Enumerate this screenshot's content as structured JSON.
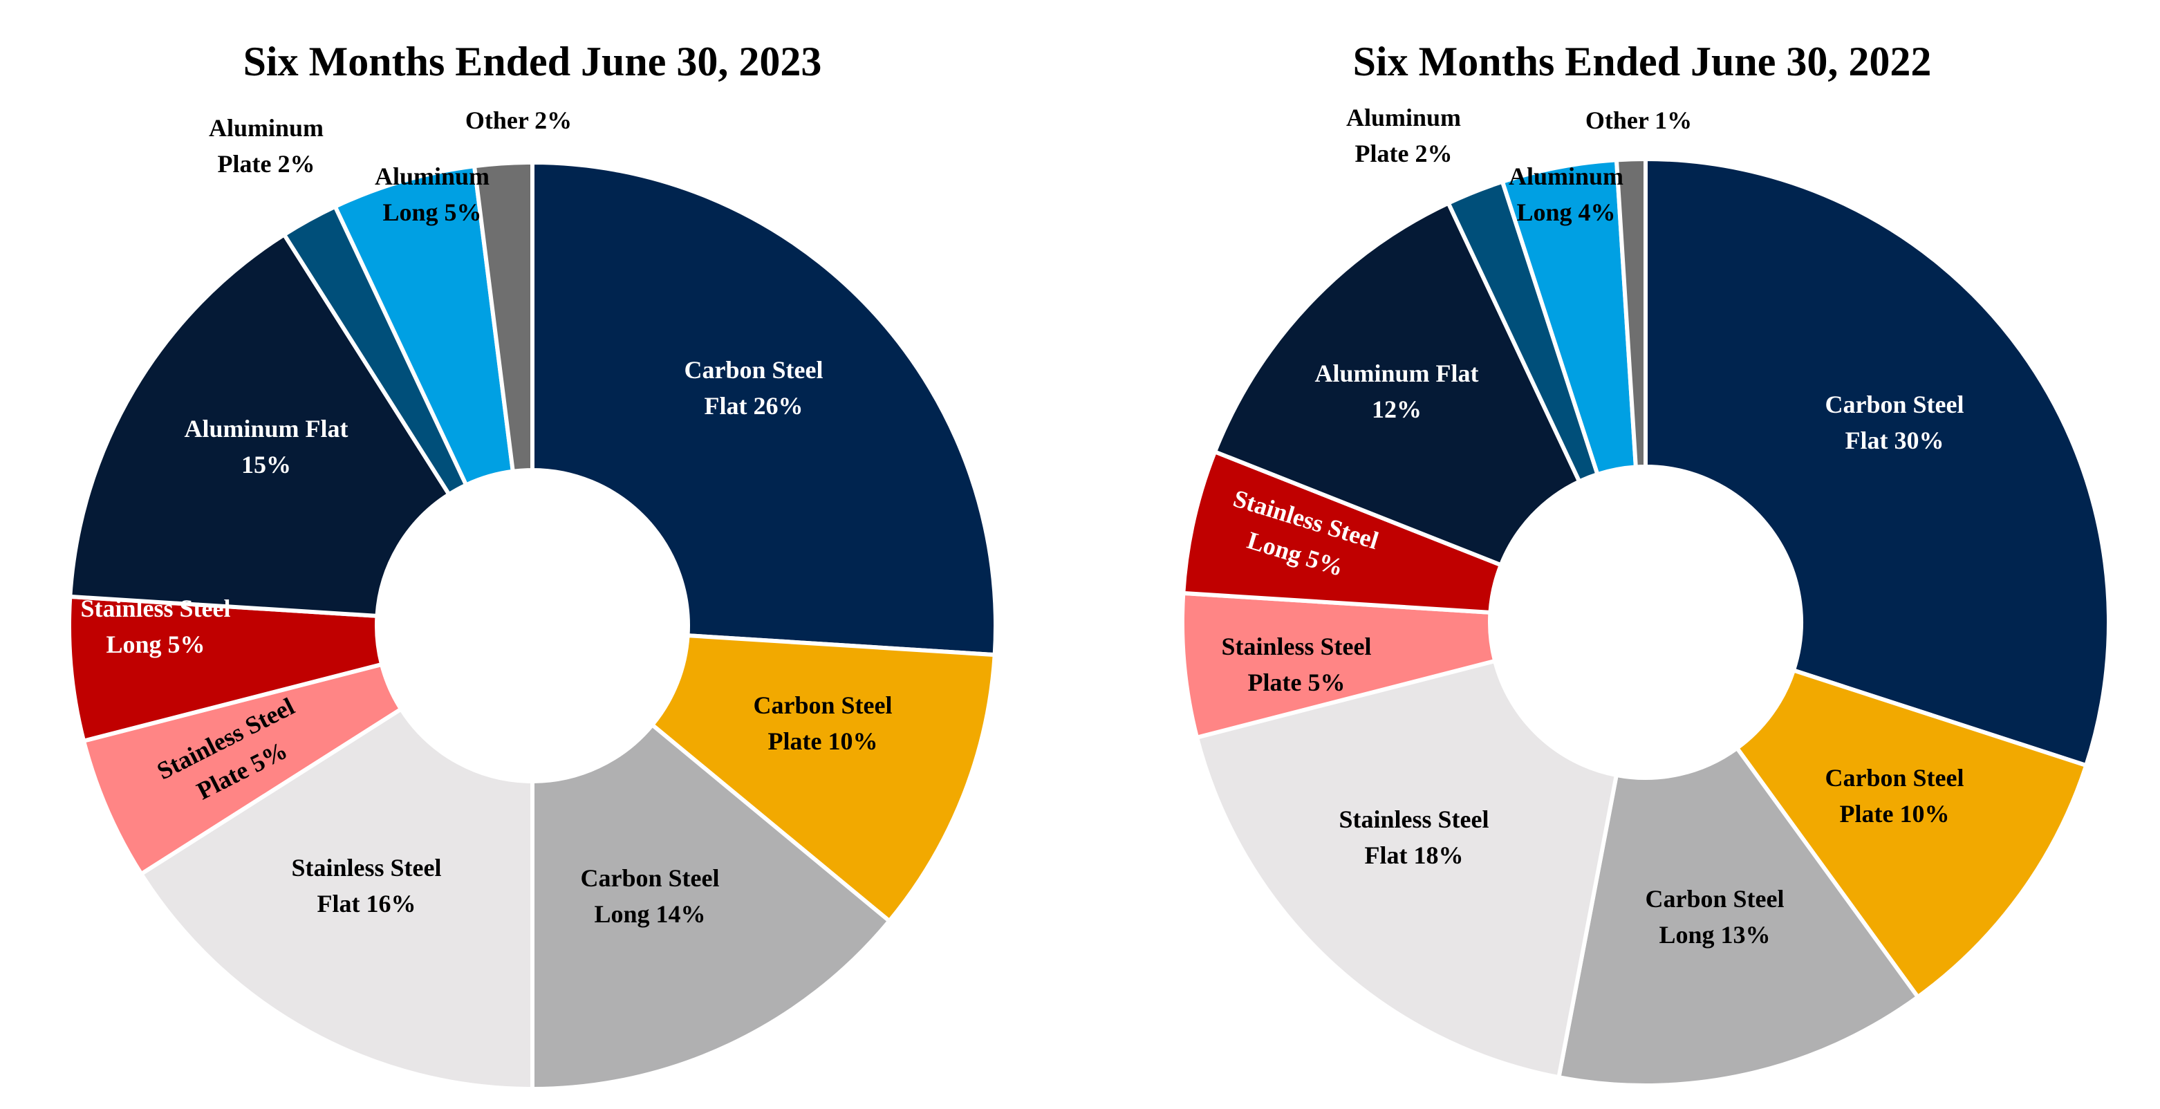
{
  "chart_data": [
    {
      "type": "pie",
      "title": "Six Months Ended June 30, 2023",
      "slices": [
        {
          "label": [
            "Carbon Steel",
            "Flat 26%"
          ],
          "value": 26,
          "color": "#00244f",
          "label_color": "#ffffff"
        },
        {
          "label": [
            "Carbon Steel",
            "Plate 10%"
          ],
          "value": 10,
          "color": "#f2a900",
          "label_color": "#000000"
        },
        {
          "label": [
            "Carbon Steel",
            "Long 14%"
          ],
          "value": 14,
          "color": "#b0b0b1",
          "label_color": "#000000"
        },
        {
          "label": [
            "Stainless Steel",
            "Flat 16%"
          ],
          "value": 16,
          "color": "#e8e6e7",
          "label_color": "#000000"
        },
        {
          "label": [
            "Stainless Steel",
            "Plate 5%"
          ],
          "value": 5,
          "color": "#ff8585",
          "label_color": "#000000"
        },
        {
          "label": [
            "Stainless Steel",
            "Long 5%"
          ],
          "value": 5,
          "color": "#c00000",
          "label_color": "#ffffff"
        },
        {
          "label": [
            "Aluminum Flat",
            "15%"
          ],
          "value": 15,
          "color": "#051a36",
          "label_color": "#ffffff"
        },
        {
          "label": [
            "Aluminum",
            "Plate 2%"
          ],
          "value": 2,
          "color": "#004f7a",
          "label_color": "#000000"
        },
        {
          "label": [
            "Aluminum",
            "Long 5%"
          ],
          "value": 5,
          "color": "#00a0e3",
          "label_color": "#000000"
        },
        {
          "label": [
            "Other 2%"
          ],
          "value": 2,
          "color": "#6f6f6f",
          "label_color": "#000000"
        }
      ]
    },
    {
      "type": "pie",
      "title": "Six Months Ended June 30, 2022",
      "slices": [
        {
          "label": [
            "Carbon Steel",
            "Flat 30%"
          ],
          "value": 30,
          "color": "#00244f",
          "label_color": "#ffffff"
        },
        {
          "label": [
            "Carbon Steel",
            "Plate 10%"
          ],
          "value": 10,
          "color": "#f2a900",
          "label_color": "#000000"
        },
        {
          "label": [
            "Carbon Steel",
            "Long 13%"
          ],
          "value": 13,
          "color": "#b0b0b1",
          "label_color": "#000000"
        },
        {
          "label": [
            "Stainless Steel",
            "Flat 18%"
          ],
          "value": 18,
          "color": "#e8e6e7",
          "label_color": "#000000"
        },
        {
          "label": [
            "Stainless Steel",
            "Plate 5%"
          ],
          "value": 5,
          "color": "#ff8585",
          "label_color": "#000000"
        },
        {
          "label": [
            "Stainless Steel",
            "Long 5%"
          ],
          "value": 5,
          "color": "#c00000",
          "label_color": "#ffffff"
        },
        {
          "label": [
            "Aluminum Flat",
            "12%"
          ],
          "value": 12,
          "color": "#051a36",
          "label_color": "#ffffff"
        },
        {
          "label": [
            "Aluminum",
            "Plate 2%"
          ],
          "value": 2,
          "color": "#004f7a",
          "label_color": "#000000"
        },
        {
          "label": [
            "Aluminum",
            "Long 4%"
          ],
          "value": 4,
          "color": "#00a0e3",
          "label_color": "#000000"
        },
        {
          "label": [
            "Other 1%"
          ],
          "value": 1,
          "color": "#6f6f6f",
          "label_color": "#000000"
        }
      ]
    }
  ]
}
